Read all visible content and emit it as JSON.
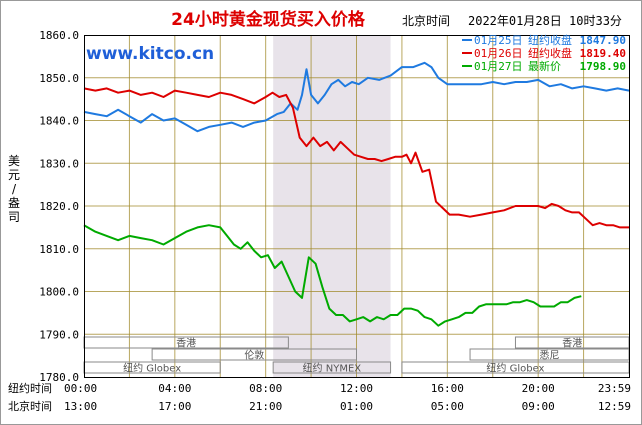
{
  "header": {
    "title": "24小时黄金现货买入价格",
    "timezone_label": "北京时间",
    "timestamp": "2022年01月28日 10时33分",
    "watermark": "www.kitco.cn"
  },
  "legend": [
    {
      "date": "01月25日",
      "label": "纽约收盘",
      "value": "1847.90",
      "color": "#1f7ae0"
    },
    {
      "date": "01月26日",
      "label": "纽约收盘",
      "value": "1819.40",
      "color": "#dd0000"
    },
    {
      "date": "01月27日",
      "label": "最新价",
      "value": "1798.90",
      "color": "#00aa00"
    }
  ],
  "axis": {
    "ylabel": "美元/盎司",
    "y_ticks": [
      "1860.0",
      "1850.0",
      "1840.0",
      "1830.0",
      "1820.0",
      "1810.0",
      "1800.0",
      "1790.0",
      "1780.0"
    ],
    "ny_time_label": "纽约时间",
    "bj_time_label": "北京时间",
    "ny_ticks": [
      "00:00",
      "04:00",
      "08:00",
      "12:00",
      "16:00",
      "20:00",
      "23:59"
    ],
    "bj_ticks": [
      "13:00",
      "17:00",
      "21:00",
      "01:00",
      "05:00",
      "09:00",
      "12:59"
    ]
  },
  "sessions": [
    {
      "name": "香港",
      "start": 0,
      "end": 9
    },
    {
      "name": "伦敦",
      "start": 3,
      "end": 12
    },
    {
      "name": "纽约 Globex",
      "start": 0,
      "end": 6
    },
    {
      "name": "纽约 NYMEX",
      "start": 8.33,
      "end": 13.5
    },
    {
      "name": "纽约 Globex",
      "start": 14,
      "end": 24
    },
    {
      "name": "香港",
      "start": 19,
      "end": 24
    },
    {
      "name": "悉尼",
      "start": 17,
      "end": 24
    }
  ],
  "chart_data": {
    "type": "line",
    "xlabel": "纽约时间",
    "ylabel": "美元/盎司",
    "xlim": [
      0,
      24
    ],
    "ylim": [
      1780,
      1860
    ],
    "x_unit": "hours (New York time)",
    "highlight_band": [
      8.33,
      13.5
    ],
    "grid": true,
    "series": [
      {
        "name": "01月25日",
        "color": "#1f7ae0",
        "x": [
          0.0,
          0.5,
          1.0,
          1.5,
          2.0,
          2.5,
          3.0,
          3.5,
          4.0,
          4.5,
          5.0,
          5.5,
          6.0,
          6.5,
          7.0,
          7.5,
          8.0,
          8.5,
          8.8,
          9.1,
          9.4,
          9.6,
          9.8,
          10.0,
          10.3,
          10.6,
          10.9,
          11.2,
          11.5,
          11.8,
          12.1,
          12.5,
          13.0,
          13.5,
          14.0,
          14.5,
          15.0,
          15.3,
          15.6,
          16.0,
          16.5,
          17.0,
          17.5,
          18.0,
          18.5,
          19.0,
          19.5,
          20.0,
          20.5,
          21.0,
          21.5,
          22.0,
          22.5,
          23.0,
          23.5,
          24.0
        ],
        "y": [
          1842.0,
          1841.5,
          1841.0,
          1842.5,
          1841.0,
          1839.5,
          1841.5,
          1840.0,
          1840.5,
          1839.0,
          1837.5,
          1838.5,
          1839.0,
          1839.5,
          1838.5,
          1839.5,
          1840.0,
          1841.5,
          1842.0,
          1844.0,
          1842.5,
          1846.0,
          1852.0,
          1846.0,
          1844.0,
          1846.0,
          1848.5,
          1849.5,
          1848.0,
          1849.0,
          1848.5,
          1850.0,
          1849.5,
          1850.5,
          1852.5,
          1852.5,
          1853.5,
          1852.5,
          1850.0,
          1848.5,
          1848.5,
          1848.5,
          1848.5,
          1849.0,
          1848.5,
          1849.0,
          1849.0,
          1849.5,
          1848.0,
          1848.5,
          1847.5,
          1848.0,
          1847.5,
          1847.0,
          1847.5,
          1847.0
        ]
      },
      {
        "name": "01月26日",
        "color": "#dd0000",
        "x": [
          0.0,
          0.5,
          1.0,
          1.5,
          2.0,
          2.5,
          3.0,
          3.5,
          4.0,
          4.5,
          5.0,
          5.5,
          6.0,
          6.5,
          7.0,
          7.5,
          8.0,
          8.3,
          8.6,
          8.9,
          9.2,
          9.5,
          9.8,
          10.1,
          10.4,
          10.7,
          11.0,
          11.3,
          11.6,
          11.9,
          12.2,
          12.5,
          12.8,
          13.1,
          13.4,
          13.7,
          14.0,
          14.2,
          14.4,
          14.6,
          14.9,
          15.2,
          15.5,
          15.8,
          16.1,
          16.5,
          17.0,
          17.5,
          18.0,
          18.5,
          19.0,
          19.5,
          20.0,
          20.3,
          20.6,
          20.9,
          21.2,
          21.5,
          21.8,
          22.1,
          22.4,
          22.7,
          23.0,
          23.3,
          23.6,
          24.0
        ],
        "y": [
          1847.5,
          1847.0,
          1847.5,
          1846.5,
          1847.0,
          1846.0,
          1846.5,
          1845.5,
          1847.0,
          1846.5,
          1846.0,
          1845.5,
          1846.5,
          1846.0,
          1845.0,
          1844.0,
          1845.5,
          1846.5,
          1845.5,
          1846.0,
          1843.0,
          1836.0,
          1834.0,
          1836.0,
          1834.0,
          1835.0,
          1833.0,
          1835.0,
          1833.5,
          1832.0,
          1831.5,
          1831.0,
          1831.0,
          1830.5,
          1831.0,
          1831.5,
          1831.5,
          1832.0,
          1830.0,
          1832.5,
          1828.0,
          1828.5,
          1821.0,
          1819.5,
          1818.0,
          1818.0,
          1817.5,
          1818.0,
          1818.5,
          1819.0,
          1820.0,
          1820.0,
          1820.0,
          1819.5,
          1820.5,
          1820.0,
          1819.0,
          1818.5,
          1818.5,
          1817.0,
          1815.5,
          1816.0,
          1815.5,
          1815.5,
          1815.0,
          1815.0
        ]
      },
      {
        "name": "01月27日",
        "color": "#00aa00",
        "x": [
          0.0,
          0.5,
          1.0,
          1.5,
          2.0,
          2.5,
          3.0,
          3.5,
          4.0,
          4.5,
          5.0,
          5.5,
          6.0,
          6.3,
          6.6,
          6.9,
          7.2,
          7.5,
          7.8,
          8.1,
          8.4,
          8.7,
          9.0,
          9.3,
          9.6,
          9.9,
          10.2,
          10.5,
          10.8,
          11.1,
          11.4,
          11.7,
          12.0,
          12.3,
          12.6,
          12.9,
          13.2,
          13.5,
          13.8,
          14.1,
          14.4,
          14.7,
          15.0,
          15.3,
          15.6,
          15.9,
          16.2,
          16.5,
          16.8,
          17.1,
          17.4,
          17.7,
          18.0,
          18.3,
          18.6,
          18.9,
          19.2,
          19.5,
          19.8,
          20.1,
          20.4,
          20.7,
          21.0,
          21.3,
          21.6,
          21.9
        ],
        "y": [
          1815.5,
          1814.0,
          1813.0,
          1812.0,
          1813.0,
          1812.5,
          1812.0,
          1811.0,
          1812.5,
          1814.0,
          1815.0,
          1815.5,
          1815.0,
          1813.0,
          1811.0,
          1810.0,
          1811.5,
          1809.5,
          1808.0,
          1808.5,
          1805.5,
          1807.0,
          1803.5,
          1800.0,
          1798.5,
          1808.0,
          1806.5,
          1801.0,
          1796.0,
          1794.5,
          1794.5,
          1793.0,
          1793.5,
          1794.0,
          1793.0,
          1794.0,
          1793.5,
          1794.5,
          1794.5,
          1796.0,
          1796.0,
          1795.5,
          1794.0,
          1793.5,
          1792.0,
          1793.0,
          1793.5,
          1794.0,
          1795.0,
          1795.0,
          1796.5,
          1797.0,
          1797.0,
          1797.0,
          1797.0,
          1797.5,
          1797.5,
          1798.0,
          1797.5,
          1796.5,
          1796.5,
          1796.5,
          1797.5,
          1797.5,
          1798.5,
          1798.9
        ]
      }
    ]
  }
}
